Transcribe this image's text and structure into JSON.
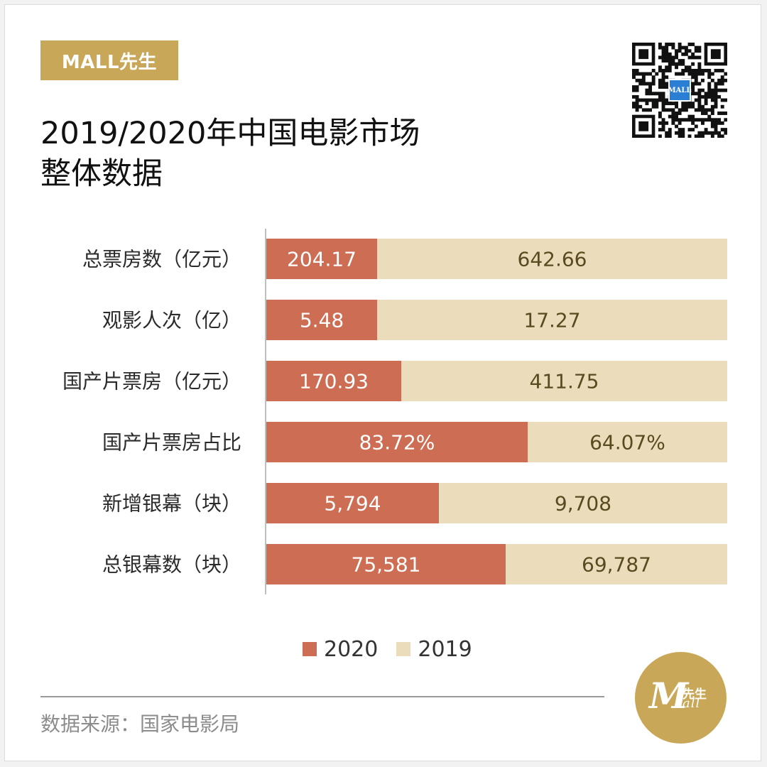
{
  "brand": {
    "label": "MALL先生"
  },
  "title": {
    "line1": "2019/2020年中国电影市场",
    "line2": "整体数据"
  },
  "qr": {
    "logo_text": "MALL"
  },
  "colors": {
    "series_2020": "#cd6e54",
    "series_2019": "#ebdcbb",
    "accent": "#c8a858"
  },
  "chart_data": {
    "type": "bar",
    "orientation": "horizontal-stacked-share",
    "categories": [
      "总票房数（亿元）",
      "观影人次（亿）",
      "国产片票房（亿元）",
      "国产片票房占比",
      "新增银幕（块）",
      "总银幕数（块）"
    ],
    "series": [
      {
        "name": "2020",
        "values": [
          204.17,
          5.48,
          170.93,
          83.72,
          5794,
          75581
        ],
        "labels": [
          "204.17",
          "5.48",
          "170.93",
          "83.72%",
          "5,794",
          "75,581"
        ]
      },
      {
        "name": "2019",
        "values": [
          642.66,
          17.27,
          411.75,
          64.07,
          9708,
          69787
        ],
        "labels": [
          "642.66",
          "17.27",
          "411.75",
          "64.07%",
          "9,708",
          "69,787"
        ]
      }
    ],
    "legend": [
      "2020",
      "2019"
    ],
    "legend_position": "bottom",
    "grid": false
  },
  "footer": {
    "source": "数据来源：国家电影局",
    "logo_cn": "先生",
    "logo_en": "all",
    "logo_m": "M"
  }
}
